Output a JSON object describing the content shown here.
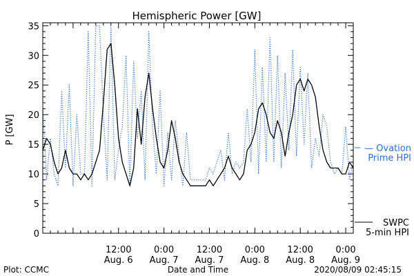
{
  "chart_data": {
    "type": "line",
    "title": "Hemispheric Power [GW]",
    "ylabel": "P [GW]",
    "xlabel": "Date and Time",
    "ylim": [
      0,
      35.5
    ],
    "xlim": [
      "2020-08-05T16:00",
      "2020-08-09T02:00"
    ],
    "yticks": [
      0,
      5,
      10,
      15,
      20,
      25,
      30,
      35
    ],
    "xticks": [
      {
        "t": "2020-08-06T12:00",
        "time": "12:00",
        "date": "Aug. 6"
      },
      {
        "t": "2020-08-07T00:00",
        "time": "0:00",
        "date": "Aug. 7"
      },
      {
        "t": "2020-08-07T12:00",
        "time": "12:00",
        "date": "Aug. 7"
      },
      {
        "t": "2020-08-08T00:00",
        "time": "0:00",
        "date": "Aug. 8"
      },
      {
        "t": "2020-08-08T12:00",
        "time": "12:00",
        "date": "Aug. 8"
      },
      {
        "t": "2020-08-09T00:00",
        "time": "0:00",
        "date": "Aug. 9"
      }
    ],
    "series": [
      {
        "name": "SWPC 5-min HPI",
        "color": "#000000",
        "style": "solid",
        "x": [
          "2020-08-05T16:00",
          "2020-08-05T17:00",
          "2020-08-05T18:00",
          "2020-08-05T19:00",
          "2020-08-05T20:00",
          "2020-08-05T21:00",
          "2020-08-05T22:00",
          "2020-08-05T23:00",
          "2020-08-06T00:00",
          "2020-08-06T01:00",
          "2020-08-06T02:00",
          "2020-08-06T03:00",
          "2020-08-06T04:00",
          "2020-08-06T05:00",
          "2020-08-06T06:00",
          "2020-08-06T07:00",
          "2020-08-06T08:00",
          "2020-08-06T09:00",
          "2020-08-06T10:00",
          "2020-08-06T11:00",
          "2020-08-06T12:00",
          "2020-08-06T13:00",
          "2020-08-06T14:00",
          "2020-08-06T15:00",
          "2020-08-06T16:00",
          "2020-08-06T17:00",
          "2020-08-06T18:00",
          "2020-08-06T19:00",
          "2020-08-06T20:00",
          "2020-08-06T21:00",
          "2020-08-06T22:00",
          "2020-08-06T23:00",
          "2020-08-07T00:00",
          "2020-08-07T01:00",
          "2020-08-07T02:00",
          "2020-08-07T03:00",
          "2020-08-07T04:00",
          "2020-08-07T05:00",
          "2020-08-07T06:00",
          "2020-08-07T07:00",
          "2020-08-07T08:00",
          "2020-08-07T09:00",
          "2020-08-07T10:00",
          "2020-08-07T11:00",
          "2020-08-07T12:00",
          "2020-08-07T13:00",
          "2020-08-07T14:00",
          "2020-08-07T15:00",
          "2020-08-07T16:00",
          "2020-08-07T17:00",
          "2020-08-07T18:00",
          "2020-08-07T19:00",
          "2020-08-07T20:00",
          "2020-08-07T21:00",
          "2020-08-07T22:00",
          "2020-08-07T23:00",
          "2020-08-08T00:00",
          "2020-08-08T01:00",
          "2020-08-08T02:00",
          "2020-08-08T03:00",
          "2020-08-08T04:00",
          "2020-08-08T05:00",
          "2020-08-08T06:00",
          "2020-08-08T07:00",
          "2020-08-08T08:00",
          "2020-08-08T09:00",
          "2020-08-08T10:00",
          "2020-08-08T11:00",
          "2020-08-08T12:00",
          "2020-08-08T13:00",
          "2020-08-08T14:00",
          "2020-08-08T15:00",
          "2020-08-08T16:00",
          "2020-08-08T17:00",
          "2020-08-08T18:00",
          "2020-08-08T19:00",
          "2020-08-08T20:00",
          "2020-08-08T21:00",
          "2020-08-08T22:00",
          "2020-08-08T23:00",
          "2020-08-09T00:00",
          "2020-08-09T01:00",
          "2020-08-09T02:00"
        ],
        "y": [
          14,
          16,
          15,
          12,
          10,
          11,
          14,
          11,
          10,
          10,
          9,
          10,
          9,
          10,
          12,
          14,
          22,
          31,
          32,
          25,
          16,
          12,
          10,
          8,
          11,
          21,
          15,
          23,
          27,
          21,
          16,
          12,
          11,
          14,
          19,
          16,
          12,
          10,
          9,
          8,
          8,
          8,
          8,
          8,
          9,
          8,
          9,
          10,
          11,
          13,
          11,
          10,
          9,
          10,
          14,
          15,
          17,
          21,
          22,
          20,
          17,
          16,
          19,
          17,
          13,
          17,
          20,
          25,
          26,
          24,
          26,
          25,
          23,
          18,
          14,
          12,
          11,
          11,
          11,
          10,
          10,
          12,
          11
        ]
      },
      {
        "name": "Ovation Prime HPI",
        "color": "#2a6fcf",
        "style": "dotted",
        "x": [
          "2020-08-05T16:00",
          "2020-08-05T17:00",
          "2020-08-05T18:00",
          "2020-08-05T19:00",
          "2020-08-05T20:00",
          "2020-08-05T21:00",
          "2020-08-05T22:00",
          "2020-08-05T23:00",
          "2020-08-06T00:00",
          "2020-08-06T01:00",
          "2020-08-06T02:00",
          "2020-08-06T03:00",
          "2020-08-06T04:00",
          "2020-08-06T05:00",
          "2020-08-06T06:00",
          "2020-08-06T07:00",
          "2020-08-06T08:00",
          "2020-08-06T09:00",
          "2020-08-06T10:00",
          "2020-08-06T11:00",
          "2020-08-06T12:00",
          "2020-08-06T13:00",
          "2020-08-06T14:00",
          "2020-08-06T15:00",
          "2020-08-06T16:00",
          "2020-08-06T17:00",
          "2020-08-06T18:00",
          "2020-08-06T19:00",
          "2020-08-06T20:00",
          "2020-08-06T21:00",
          "2020-08-06T22:00",
          "2020-08-06T23:00",
          "2020-08-07T00:00",
          "2020-08-07T01:00",
          "2020-08-07T02:00",
          "2020-08-07T03:00",
          "2020-08-07T04:00",
          "2020-08-07T05:00",
          "2020-08-07T06:00",
          "2020-08-07T07:00",
          "2020-08-07T08:00",
          "2020-08-07T09:00",
          "2020-08-07T10:00",
          "2020-08-07T11:00",
          "2020-08-07T12:00",
          "2020-08-07T13:00",
          "2020-08-07T14:00",
          "2020-08-07T15:00",
          "2020-08-07T16:00",
          "2020-08-07T17:00",
          "2020-08-07T18:00",
          "2020-08-07T19:00",
          "2020-08-07T20:00",
          "2020-08-07T21:00",
          "2020-08-07T22:00",
          "2020-08-07T23:00",
          "2020-08-08T00:00",
          "2020-08-08T01:00",
          "2020-08-08T02:00",
          "2020-08-08T03:00",
          "2020-08-08T04:00",
          "2020-08-08T05:00",
          "2020-08-08T06:00",
          "2020-08-08T07:00",
          "2020-08-08T08:00",
          "2020-08-08T09:00",
          "2020-08-08T10:00",
          "2020-08-08T11:00",
          "2020-08-08T12:00",
          "2020-08-08T13:00",
          "2020-08-08T14:00",
          "2020-08-08T15:00",
          "2020-08-08T16:00",
          "2020-08-08T17:00",
          "2020-08-08T18:00",
          "2020-08-08T19:00",
          "2020-08-08T20:00",
          "2020-08-08T21:00",
          "2020-08-08T22:00",
          "2020-08-08T23:00",
          "2020-08-09T00:00",
          "2020-08-09T01:00",
          "2020-08-09T02:00"
        ],
        "y": [
          22,
          9,
          16,
          10,
          8,
          24,
          11,
          25,
          8,
          20,
          10,
          10,
          34,
          8,
          35,
          35,
          20,
          9,
          35,
          9,
          14,
          18,
          30,
          8,
          29,
          16,
          24,
          9,
          34,
          18,
          10,
          24,
          8,
          17,
          9,
          19,
          13,
          8,
          17,
          9,
          9,
          9,
          9,
          9,
          11,
          10,
          12,
          14,
          9,
          17,
          10,
          12,
          11,
          12,
          21,
          12,
          31,
          10,
          28,
          12,
          33,
          12,
          30,
          11,
          27,
          14,
          31,
          13,
          28,
          15,
          27,
          11,
          16,
          13,
          20,
          18,
          12,
          10,
          11,
          10,
          18,
          9,
          12
        ]
      }
    ],
    "legend": [
      {
        "name": "Ovation Prime HPI",
        "lines": [
          "— Ovation",
          "Prime HPI"
        ],
        "color": "#2a6fcf"
      },
      {
        "name": "SWPC 5-min HPI",
        "lines": [
          "SWPC",
          "5-min HPI"
        ],
        "color": "#000000"
      }
    ],
    "legend_placement": "right",
    "grid": false
  },
  "footer": {
    "left": "Plot: CCMC",
    "center": "Date and Time",
    "right": "2020/08/09 02:45:15"
  }
}
